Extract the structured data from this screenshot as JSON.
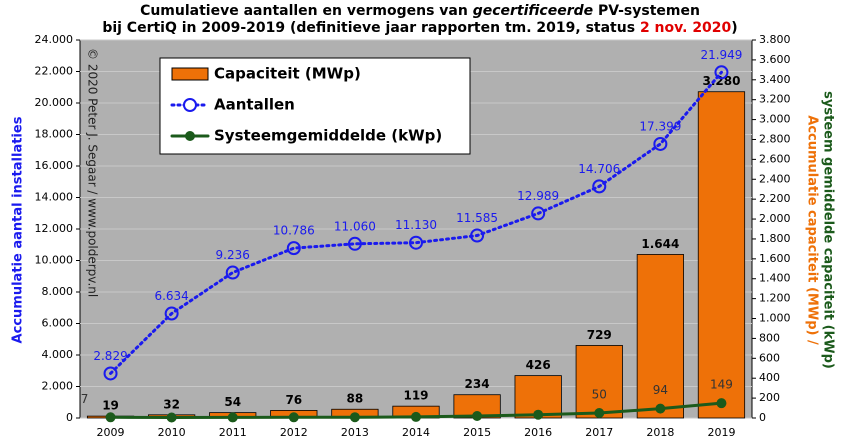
{
  "chart_data": {
    "type": "bar-line",
    "title": [
      "Cumulatieve aantallen en vermogens van ",
      "gecertificeerde",
      " PV-systemen"
    ],
    "subtitle": [
      "bij CertiQ in 2009-2019 (definitieve jaar rapporten tm. 2019, status ",
      "2 nov. 2020",
      ")"
    ],
    "watermark": "© 2020 Peter J. Segaar / www.polderpv.nl",
    "ylabel": "Accumulatie aantal installaties",
    "y2label": [
      "Accumulatie capaciteit (MWp) /",
      "systeem gemiddelde capaciteit (kWp)"
    ],
    "categories": [
      "2009",
      "2010",
      "2011",
      "2012",
      "2013",
      "2014",
      "2015",
      "2016",
      "2017",
      "2018",
      "2019"
    ],
    "ylim": [
      0,
      24000
    ],
    "yticks": [
      0,
      {
        "value": 2000,
        "label": "2.000"
      },
      {
        "value": 4000,
        "label": "4.000"
      },
      {
        "value": 6000,
        "label": "6.000"
      },
      {
        "value": 8000,
        "label": "8.000"
      },
      {
        "value": 10000,
        "label": "10.000"
      },
      {
        "value": 12000,
        "label": "12.000"
      },
      {
        "value": 14000,
        "label": "14.000"
      },
      {
        "value": 16000,
        "label": "16.000"
      },
      {
        "value": 18000,
        "label": "18.000"
      },
      {
        "value": 20000,
        "label": "20.000"
      },
      {
        "value": 22000,
        "label": "22.000"
      },
      {
        "value": 24000,
        "label": "24.000"
      }
    ],
    "y2lim": [
      0,
      3800
    ],
    "y2ticks": [
      0,
      200,
      400,
      600,
      800,
      {
        "value": 1000,
        "label": "1.000"
      },
      {
        "value": 1200,
        "label": "1.200"
      },
      {
        "value": 1400,
        "label": "1.400"
      },
      {
        "value": 1600,
        "label": "1.600"
      },
      {
        "value": 1800,
        "label": "1.800"
      },
      {
        "value": 2000,
        "label": "2.000"
      },
      {
        "value": 2200,
        "label": "2.200"
      },
      {
        "value": 2400,
        "label": "2.400"
      },
      {
        "value": 2600,
        "label": "2.600"
      },
      {
        "value": 2800,
        "label": "2.800"
      },
      {
        "value": 3000,
        "label": "3.000"
      },
      {
        "value": 3200,
        "label": "3.200"
      },
      {
        "value": 3400,
        "label": "3.400"
      },
      {
        "value": 3600,
        "label": "3.600"
      },
      {
        "value": 3800,
        "label": "3.800"
      }
    ],
    "grid": true,
    "series": [
      {
        "name": "Capaciteit (MWp)",
        "kind": "bar",
        "axis": "y2",
        "color": "#ee7108",
        "values": [
          19,
          32,
          54,
          76,
          88,
          119,
          234,
          426,
          729,
          1644,
          3280
        ],
        "value_labels": [
          "19",
          "32",
          "54",
          "76",
          "88",
          "119",
          "234",
          "426",
          "729",
          "1.644",
          "3.280"
        ]
      },
      {
        "name": "Aantallen",
        "kind": "line",
        "axis": "y",
        "color": "#1a1aee",
        "values": [
          2829,
          6634,
          9236,
          10786,
          11060,
          11130,
          11585,
          12989,
          14706,
          17399,
          21949
        ],
        "value_labels": [
          "2.829",
          "6.634",
          "9.236",
          "10.786",
          "11.060",
          "11.130",
          "11.585",
          "12.989",
          "14.706",
          "17.399",
          "21.949"
        ]
      },
      {
        "name": "Systeemgemiddelde (kWp)",
        "kind": "line",
        "axis": "y2",
        "color": "#1b5a1b",
        "values": [
          7,
          5,
          6,
          7,
          8,
          11,
          20,
          33,
          50,
          94,
          149
        ],
        "value_labels": [
          "7",
          null,
          null,
          null,
          null,
          null,
          null,
          null,
          "50",
          "94",
          "149"
        ]
      }
    ]
  }
}
